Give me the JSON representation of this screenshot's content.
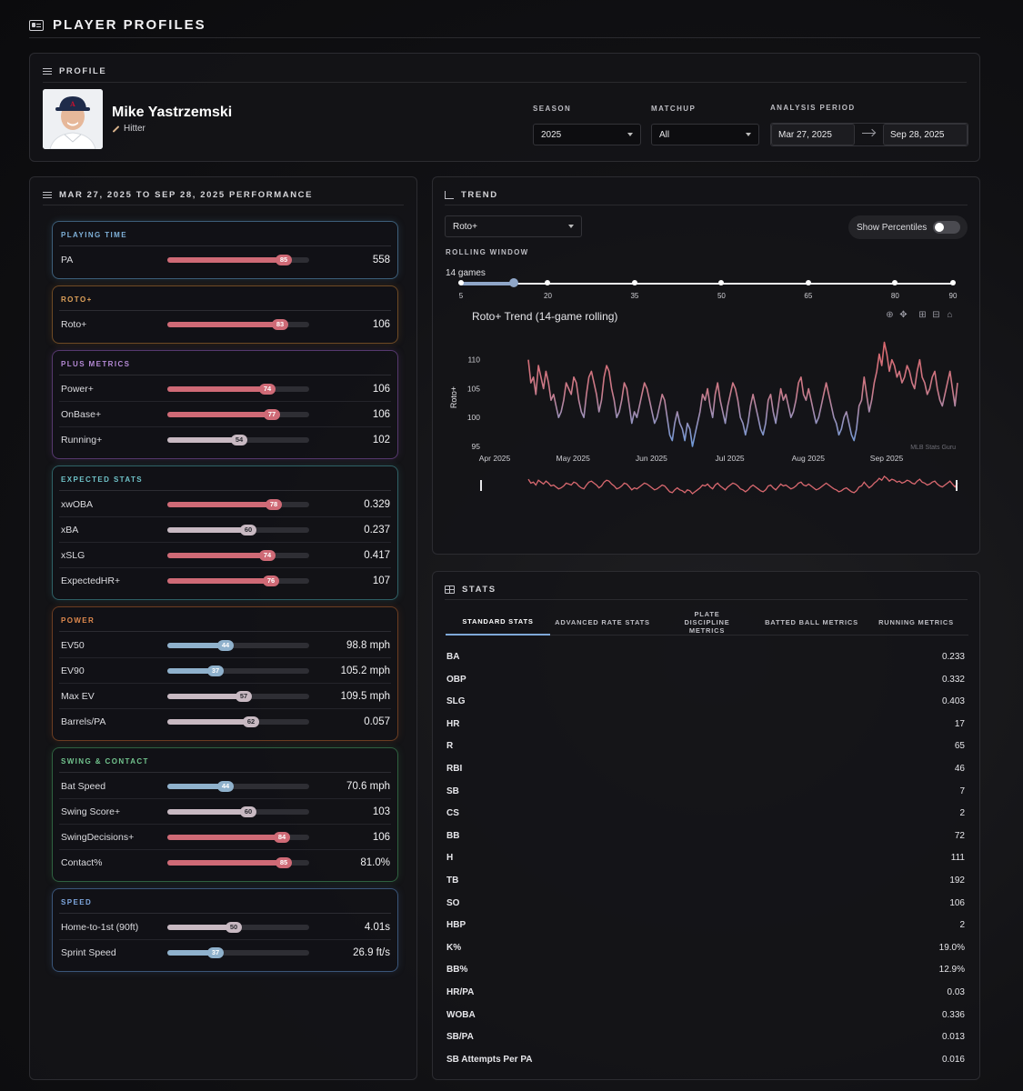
{
  "header": {
    "title": "PLAYER PROFILES"
  },
  "profile": {
    "section_title": "PROFILE",
    "name": "Mike Yastrzemski",
    "role": "Hitter",
    "season_label": "SEASON",
    "season_value": "2025",
    "matchup_label": "MATCHUP",
    "matchup_value": "All",
    "period_label": "ANALYSIS PERIOD",
    "period_start": "Mar 27, 2025",
    "period_end": "Sep 28, 2025"
  },
  "colors": {
    "high": "#cf6a76",
    "mid": "#c8b9c2",
    "low": "#8fb1cc"
  },
  "performance": {
    "title": "MAR 27, 2025 TO SEP 28, 2025 PERFORMANCE",
    "groups": [
      {
        "title": "PLAYING TIME",
        "color": "#7fb1d9",
        "border": "#3d5f7a",
        "metrics": [
          {
            "name": "PA",
            "pct": 85,
            "value": "558"
          }
        ]
      },
      {
        "title": "ROTO+",
        "color": "#e0a25a",
        "border": "#6e4a25",
        "metrics": [
          {
            "name": "Roto+",
            "pct": 83,
            "value": "106"
          }
        ]
      },
      {
        "title": "PLUS METRICS",
        "color": "#b58ad6",
        "border": "#56386e",
        "metrics": [
          {
            "name": "Power+",
            "pct": 74,
            "value": "106"
          },
          {
            "name": "OnBase+",
            "pct": 77,
            "value": "106"
          },
          {
            "name": "Running+",
            "pct": 54,
            "value": "102"
          }
        ]
      },
      {
        "title": "EXPECTED STATS",
        "color": "#6fc2c8",
        "border": "#2f6166",
        "metrics": [
          {
            "name": "xwOBA",
            "pct": 78,
            "value": "0.329"
          },
          {
            "name": "xBA",
            "pct": 60,
            "value": "0.237"
          },
          {
            "name": "xSLG",
            "pct": 74,
            "value": "0.417"
          },
          {
            "name": "ExpectedHR+",
            "pct": 76,
            "value": "107"
          }
        ]
      },
      {
        "title": "POWER",
        "color": "#e08a4e",
        "border": "#6b3d22",
        "metrics": [
          {
            "name": "EV50",
            "pct": 44,
            "value": "98.8 mph"
          },
          {
            "name": "EV90",
            "pct": 37,
            "value": "105.2 mph"
          },
          {
            "name": "Max EV",
            "pct": 57,
            "value": "109.5 mph"
          },
          {
            "name": "Barrels/PA",
            "pct": 62,
            "value": "0.057"
          }
        ]
      },
      {
        "title": "SWING & CONTACT",
        "color": "#72c48e",
        "border": "#2f6140",
        "metrics": [
          {
            "name": "Bat Speed",
            "pct": 44,
            "value": "70.6 mph"
          },
          {
            "name": "Swing Score+",
            "pct": 60,
            "value": "103"
          },
          {
            "name": "SwingDecisions+",
            "pct": 84,
            "value": "106"
          },
          {
            "name": "Contact%",
            "pct": 85,
            "value": "81.0%"
          }
        ]
      },
      {
        "title": "SPEED",
        "color": "#7fa8e0",
        "border": "#3a5579",
        "metrics": [
          {
            "name": "Home-to-1st (90ft)",
            "pct": 50,
            "value": "4.01s"
          },
          {
            "name": "Sprint Speed",
            "pct": 37,
            "value": "26.9 ft/s"
          }
        ]
      }
    ]
  },
  "trend": {
    "title": "TREND",
    "metric_select": "Roto+",
    "show_percentiles": "Show Percentiles",
    "rolling_label": "ROLLING WINDOW",
    "rolling_value": "14 games",
    "slider_ticks": [
      "5",
      "20",
      "35",
      "50",
      "65",
      "80",
      "90"
    ],
    "watermark": "MLB Stats Guru"
  },
  "chart_data": {
    "type": "line",
    "title": "Roto+ Trend (14-game rolling)",
    "ylabel": "Roto+",
    "xlabel": "",
    "ylim": [
      95,
      112
    ],
    "yticks": [
      95,
      100,
      105,
      110
    ],
    "xticks": [
      "Apr 2025",
      "May 2025",
      "Jun 2025",
      "Jul 2025",
      "Aug 2025",
      "Sep 2025"
    ],
    "grid": false,
    "series": [
      {
        "name": "",
        "values": [
          110,
          106,
          107,
          104,
          109,
          107,
          105,
          108,
          106,
          103,
          104,
          102,
          100,
          101,
          103,
          106,
          105,
          104,
          107,
          106,
          103,
          101,
          100,
          104,
          107,
          108,
          106,
          104,
          101,
          103,
          107,
          109,
          108,
          105,
          103,
          100,
          101,
          103,
          106,
          105,
          102,
          99,
          101,
          100,
          102,
          104,
          106,
          105,
          103,
          101,
          99,
          100,
          102,
          104,
          103,
          100,
          97,
          96,
          99,
          101,
          99,
          98,
          96,
          99,
          98,
          95,
          97,
          99,
          101,
          104,
          103,
          105,
          102,
          100,
          104,
          106,
          103,
          101,
          99,
          102,
          104,
          106,
          105,
          103,
          100,
          99,
          97,
          99,
          102,
          104,
          102,
          100,
          98,
          97,
          99,
          103,
          104,
          101,
          99,
          102,
          105,
          103,
          104,
          102,
          100,
          101,
          103,
          106,
          107,
          104,
          103,
          105,
          103,
          101,
          99,
          100,
          102,
          104,
          106,
          104,
          102,
          100,
          99,
          97,
          98,
          100,
          101,
          99,
          97,
          96,
          98,
          102,
          103,
          107,
          104,
          101,
          103,
          106,
          108,
          111,
          109,
          113,
          111,
          108,
          110,
          109,
          107,
          108,
          106,
          107,
          109,
          108,
          106,
          105,
          108,
          110,
          107,
          106,
          104,
          105,
          107,
          108,
          105,
          103,
          102,
          104,
          106,
          108,
          105,
          102,
          106
        ]
      }
    ]
  },
  "stats": {
    "title": "STATS",
    "tabs": [
      "STANDARD STATS",
      "ADVANCED RATE STATS",
      "PLATE DISCIPLINE METRICS",
      "BATTED BALL METRICS",
      "RUNNING METRICS"
    ],
    "rows": [
      {
        "label": "BA",
        "value": "0.233"
      },
      {
        "label": "OBP",
        "value": "0.332"
      },
      {
        "label": "SLG",
        "value": "0.403"
      },
      {
        "label": "HR",
        "value": "17"
      },
      {
        "label": "R",
        "value": "65"
      },
      {
        "label": "RBI",
        "value": "46"
      },
      {
        "label": "SB",
        "value": "7"
      },
      {
        "label": "CS",
        "value": "2"
      },
      {
        "label": "BB",
        "value": "72"
      },
      {
        "label": "H",
        "value": "111"
      },
      {
        "label": "TB",
        "value": "192"
      },
      {
        "label": "SO",
        "value": "106"
      },
      {
        "label": "HBP",
        "value": "2"
      },
      {
        "label": "K%",
        "value": "19.0%"
      },
      {
        "label": "BB%",
        "value": "12.9%"
      },
      {
        "label": "HR/PA",
        "value": "0.03"
      },
      {
        "label": "WOBA",
        "value": "0.336"
      },
      {
        "label": "SB/PA",
        "value": "0.013"
      },
      {
        "label": "SB Attempts Per PA",
        "value": "0.016"
      }
    ]
  }
}
